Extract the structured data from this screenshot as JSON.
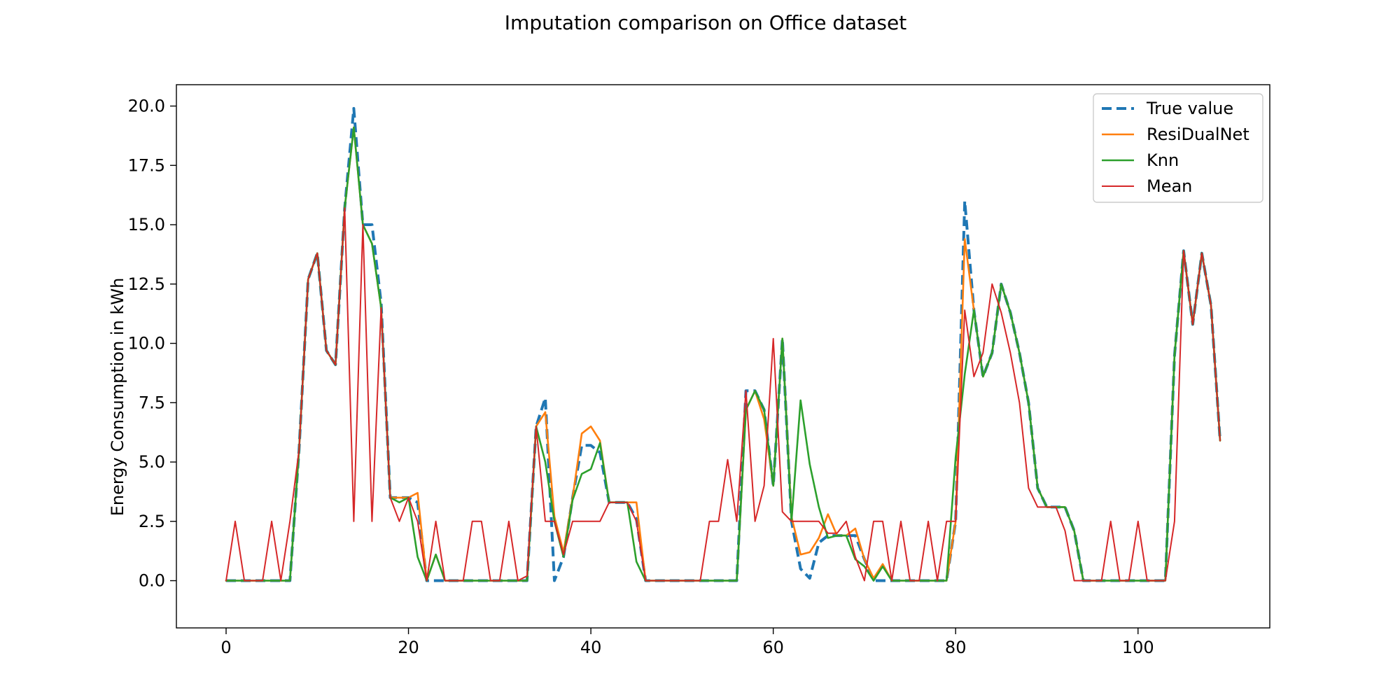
{
  "chart_data": {
    "type": "line",
    "title": "Imputation comparison on Office dataset",
    "xlabel": "",
    "ylabel": "Energy Consumption in kWh",
    "xlim": [
      -5.45,
      114.45
    ],
    "ylim": [
      -1.99,
      20.9
    ],
    "xticks": [
      0,
      20,
      40,
      60,
      80,
      100
    ],
    "yticks": [
      0.0,
      2.5,
      5.0,
      7.5,
      10.0,
      12.5,
      15.0,
      17.5,
      20.0
    ],
    "xtick_labels": [
      "0",
      "20",
      "40",
      "60",
      "80",
      "100"
    ],
    "ytick_labels": [
      "0.0",
      "2.5",
      "5.0",
      "7.5",
      "10.0",
      "12.5",
      "15.0",
      "17.5",
      "20.0"
    ],
    "grid": false,
    "legend": {
      "position": "top-right"
    },
    "series": [
      {
        "name": "True value",
        "color": "#1f77b4",
        "style": "dashed",
        "width": 4,
        "x": [
          0,
          7,
          8,
          9,
          10,
          11,
          12,
          13,
          14,
          15,
          16,
          17,
          18,
          19,
          20,
          21,
          22,
          23,
          24,
          25,
          33,
          34,
          35,
          36,
          37,
          38,
          39,
          40,
          41,
          42,
          43,
          44,
          45,
          46,
          56,
          57,
          58,
          59,
          60,
          61,
          62,
          63,
          64,
          65,
          66,
          67,
          68,
          69,
          70,
          71,
          72,
          73,
          79,
          80,
          81,
          82,
          83,
          84,
          85,
          86,
          87,
          88,
          89,
          90,
          91,
          92,
          93,
          94,
          103,
          104,
          105,
          106,
          107,
          108,
          109
        ],
        "y": [
          0,
          0,
          5.5,
          12.7,
          13.8,
          9.7,
          9.1,
          15.7,
          19.9,
          15.0,
          15.0,
          11.7,
          3.5,
          3.5,
          3.5,
          3.3,
          0,
          0,
          0,
          0,
          0,
          6.5,
          7.7,
          0,
          1.0,
          3.5,
          5.7,
          5.7,
          5.4,
          3.3,
          3.3,
          3.3,
          2.6,
          0,
          0,
          8.0,
          8.0,
          7.2,
          4.0,
          10.2,
          2.5,
          0.5,
          0.1,
          1.6,
          1.9,
          1.9,
          1.9,
          1.9,
          0.9,
          0,
          0,
          0,
          0,
          2.5,
          16.0,
          11.4,
          8.6,
          9.6,
          12.5,
          11.3,
          9.6,
          7.5,
          3.9,
          3.1,
          3.1,
          3.1,
          2.1,
          0,
          0,
          9.5,
          13.9,
          10.8,
          13.8,
          11.6,
          5.9
        ]
      },
      {
        "name": "ResiDualNet",
        "color": "#ff7f0e",
        "style": "solid",
        "width": 2.6,
        "x": [
          0,
          7,
          8,
          9,
          10,
          11,
          12,
          13,
          14,
          15,
          16,
          17,
          18,
          19,
          20,
          21,
          22,
          23,
          24,
          25,
          33,
          34,
          35,
          36,
          37,
          38,
          39,
          40,
          41,
          42,
          43,
          44,
          45,
          46,
          56,
          57,
          58,
          59,
          60,
          61,
          62,
          63,
          64,
          65,
          66,
          67,
          68,
          69,
          70,
          71,
          72,
          73,
          79,
          80,
          81,
          82,
          83,
          84,
          85,
          86,
          87,
          88,
          89,
          90,
          91,
          92,
          93,
          94,
          103,
          104,
          105,
          106,
          107,
          108,
          109
        ],
        "y": [
          0,
          0,
          5.5,
          12.7,
          13.8,
          9.7,
          9.1,
          15.7,
          19.1,
          15.0,
          14.2,
          11.5,
          3.5,
          3.5,
          3.5,
          3.7,
          0,
          1.1,
          0,
          0,
          0,
          6.5,
          7.1,
          2.7,
          1.2,
          3.5,
          6.2,
          6.5,
          5.9,
          3.3,
          3.3,
          3.3,
          3.3,
          0,
          0,
          7.2,
          8.0,
          6.8,
          4.0,
          10.2,
          2.7,
          1.1,
          1.2,
          1.8,
          2.8,
          1.9,
          1.9,
          2.2,
          0.9,
          0.1,
          0.7,
          0,
          0,
          2.5,
          14.4,
          11.4,
          8.6,
          9.6,
          12.5,
          11.3,
          9.6,
          7.5,
          3.9,
          3.1,
          3.1,
          3.1,
          2.1,
          0,
          0,
          9.5,
          13.9,
          10.8,
          13.8,
          11.6,
          5.9
        ]
      },
      {
        "name": "Knn",
        "color": "#2ca02c",
        "style": "solid",
        "width": 2.6,
        "x": [
          0,
          7,
          8,
          9,
          10,
          11,
          12,
          13,
          14,
          15,
          16,
          17,
          18,
          19,
          20,
          21,
          22,
          23,
          24,
          25,
          33,
          34,
          35,
          36,
          37,
          38,
          39,
          40,
          41,
          42,
          43,
          44,
          45,
          46,
          56,
          57,
          58,
          59,
          60,
          61,
          62,
          63,
          64,
          65,
          66,
          67,
          68,
          69,
          70,
          71,
          72,
          73,
          79,
          80,
          81,
          82,
          83,
          84,
          85,
          86,
          87,
          88,
          89,
          90,
          91,
          92,
          93,
          94,
          103,
          104,
          105,
          106,
          107,
          108,
          109
        ],
        "y": [
          0,
          0,
          5.5,
          12.7,
          13.8,
          9.7,
          9.1,
          15.7,
          19.1,
          15.0,
          14.2,
          11.5,
          3.5,
          3.3,
          3.5,
          1.0,
          0,
          1.1,
          0,
          0,
          0,
          6.5,
          5.0,
          2.5,
          1.0,
          3.4,
          4.5,
          4.7,
          5.8,
          3.3,
          3.3,
          3.3,
          0.8,
          0,
          0,
          7.2,
          8.0,
          7.2,
          4.0,
          10.2,
          2.5,
          7.6,
          4.9,
          3.1,
          1.8,
          1.9,
          1.9,
          0.9,
          0.6,
          0,
          0.6,
          0,
          0,
          5.2,
          8.7,
          11.4,
          8.6,
          9.6,
          12.5,
          11.3,
          9.6,
          7.5,
          3.9,
          3.1,
          3.1,
          3.1,
          2.1,
          0,
          0,
          9.5,
          13.9,
          10.8,
          13.8,
          11.6,
          5.9
        ]
      },
      {
        "name": "Mean",
        "color": "#d62728",
        "style": "solid",
        "width": 2,
        "x": [
          0,
          1,
          2,
          3,
          4,
          5,
          6,
          7,
          8,
          9,
          10,
          11,
          12,
          13,
          14,
          15,
          16,
          17,
          18,
          19,
          20,
          21,
          22,
          23,
          24,
          25,
          26,
          27,
          28,
          29,
          30,
          31,
          32,
          33,
          34,
          35,
          36,
          37,
          38,
          39,
          40,
          41,
          42,
          43,
          44,
          45,
          46,
          47,
          48,
          49,
          50,
          51,
          52,
          53,
          54,
          55,
          56,
          57,
          58,
          59,
          60,
          61,
          62,
          63,
          64,
          65,
          66,
          67,
          68,
          69,
          70,
          71,
          72,
          73,
          74,
          75,
          76,
          77,
          78,
          79,
          80,
          81,
          82,
          83,
          84,
          85,
          86,
          87,
          88,
          89,
          90,
          91,
          92,
          93,
          94,
          95,
          96,
          97,
          98,
          99,
          100,
          101,
          102,
          103,
          104,
          105,
          106,
          107,
          108,
          109
        ],
        "y": [
          0,
          2.5,
          0,
          0,
          0,
          2.5,
          0,
          2.5,
          5.5,
          12.7,
          13.8,
          9.7,
          9.1,
          15.7,
          2.5,
          15.0,
          2.5,
          11.5,
          3.5,
          2.5,
          3.5,
          2.5,
          0,
          2.5,
          0,
          0,
          0,
          2.5,
          2.5,
          0,
          0,
          2.5,
          0,
          0.2,
          6.5,
          2.5,
          2.5,
          1.1,
          2.5,
          2.5,
          2.5,
          2.5,
          3.3,
          3.3,
          3.3,
          2.5,
          0,
          0,
          0,
          0,
          0,
          0,
          0,
          2.5,
          2.5,
          5.1,
          2.5,
          8.0,
          2.5,
          4.0,
          10.2,
          2.9,
          2.5,
          2.5,
          2.5,
          2.5,
          2.0,
          2.0,
          2.5,
          1.0,
          0,
          2.5,
          2.5,
          0,
          2.5,
          0,
          0,
          2.5,
          0,
          2.5,
          2.5,
          11.4,
          8.6,
          9.6,
          12.5,
          11.3,
          9.6,
          7.5,
          3.9,
          3.1,
          3.1,
          3.1,
          2.1,
          0,
          0,
          0,
          0,
          2.5,
          0,
          0,
          2.5,
          0,
          0,
          0,
          2.5,
          13.9,
          10.8,
          13.8,
          11.6,
          5.9
        ]
      }
    ]
  }
}
